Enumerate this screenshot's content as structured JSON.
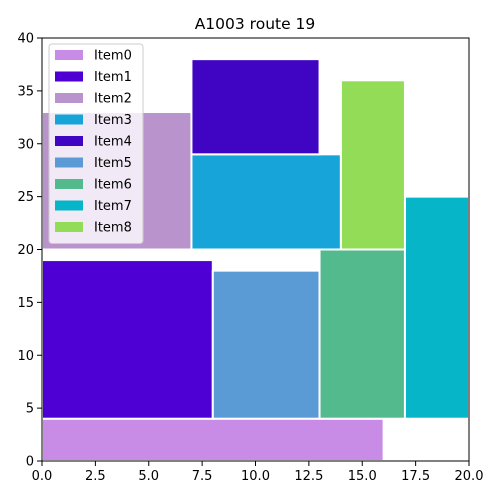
{
  "chart_data": {
    "type": "rectangle-packing",
    "title": "A1003 route 19",
    "xlim": [
      0,
      20
    ],
    "ylim": [
      0,
      40
    ],
    "x_ticks": [
      "0.0",
      "2.5",
      "5.0",
      "7.5",
      "10.0",
      "12.5",
      "15.0",
      "17.5",
      "20.0"
    ],
    "y_ticks": [
      "0",
      "5",
      "10",
      "15",
      "20",
      "25",
      "30",
      "35",
      "40"
    ],
    "grid": false,
    "legend_position": "top-left",
    "items": [
      {
        "name": "Item0",
        "x": 0,
        "y": 0,
        "width": 16,
        "height": 4,
        "color": "#c98ce6"
      },
      {
        "name": "Item1",
        "x": 0,
        "y": 4,
        "width": 8,
        "height": 15,
        "color": "#4e00d4"
      },
      {
        "name": "Item2",
        "x": 0,
        "y": 20,
        "width": 7,
        "height": 13,
        "color": "#b993cc"
      },
      {
        "name": "Item3",
        "x": 7,
        "y": 20,
        "width": 7,
        "height": 9,
        "color": "#17a5d9"
      },
      {
        "name": "Item4",
        "x": 7,
        "y": 29,
        "width": 6,
        "height": 9,
        "color": "#3f05c2"
      },
      {
        "name": "Item5",
        "x": 8,
        "y": 4,
        "width": 5,
        "height": 14,
        "color": "#5b9bd5"
      },
      {
        "name": "Item6",
        "x": 13,
        "y": 4,
        "width": 4,
        "height": 16,
        "color": "#52ba8d"
      },
      {
        "name": "Item7",
        "x": 17,
        "y": 4,
        "width": 3,
        "height": 21,
        "color": "#06b6c8"
      },
      {
        "name": "Item8",
        "x": 14,
        "y": 20,
        "width": 3,
        "height": 16,
        "color": "#93dc57"
      }
    ]
  }
}
